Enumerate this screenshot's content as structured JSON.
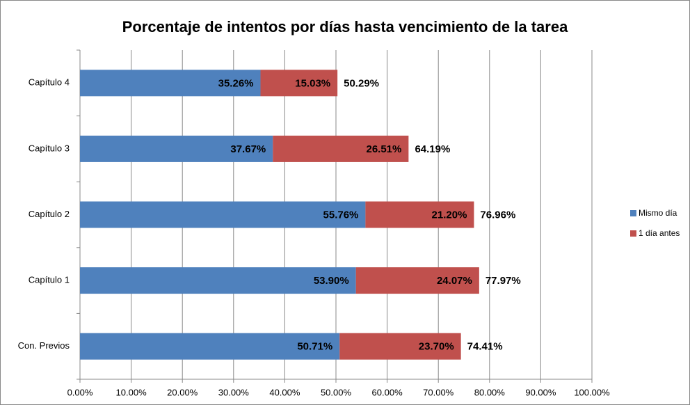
{
  "chart_data": {
    "type": "stacked-barh",
    "title": "Porcentaje de intentos por días hasta vencimiento de la tarea",
    "categories": [
      "Con. Previos",
      "Capítulo 1",
      "Capítulo 2",
      "Capítulo 3",
      "Capítulo 4"
    ],
    "series": [
      {
        "name": "Mismo día",
        "color": "#4f81bd",
        "values": [
          50.71,
          53.9,
          55.76,
          37.67,
          35.26
        ],
        "value_labels": [
          "50.71%",
          "53.90%",
          "55.76%",
          "37.67%",
          "35.26%"
        ]
      },
      {
        "name": "1 día antes",
        "color": "#c0504d",
        "values": [
          23.7,
          24.07,
          21.2,
          26.51,
          15.03
        ],
        "value_labels": [
          "23.70%",
          "24.07%",
          "21.20%",
          "26.51%",
          "15.03%"
        ]
      }
    ],
    "totals": [
      74.41,
      77.97,
      76.96,
      64.19,
      50.29
    ],
    "total_labels": [
      "74.41%",
      "77.97%",
      "76.96%",
      "64.19%",
      "50.29%"
    ],
    "xlim": [
      0,
      100
    ],
    "xticks": [
      {
        "value": 0,
        "label": "0.00%"
      },
      {
        "value": 10,
        "label": "10.00%"
      },
      {
        "value": 20,
        "label": "20.00%"
      },
      {
        "value": 30,
        "label": "30.00%"
      },
      {
        "value": 40,
        "label": "40.00%"
      },
      {
        "value": 50,
        "label": "50.00%"
      },
      {
        "value": 60,
        "label": "60.00%"
      },
      {
        "value": 70,
        "label": "70.00%"
      },
      {
        "value": 80,
        "label": "80.00%"
      },
      {
        "value": 90,
        "label": "90.00%"
      },
      {
        "value": 100,
        "label": "100.00%"
      }
    ],
    "grid": true,
    "legend": "right"
  }
}
